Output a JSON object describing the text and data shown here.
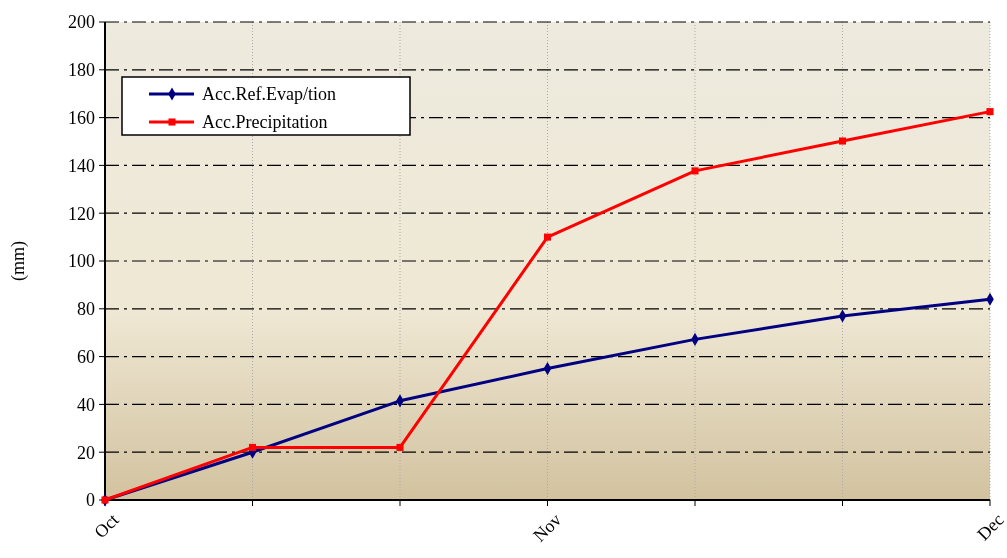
{
  "chart_data": {
    "type": "line",
    "ylabel": "(mm)",
    "categories": [
      "Oct",
      null,
      null,
      "Nov",
      null,
      null,
      "Dec"
    ],
    "series": [
      {
        "name": "Acc.Ref.Evap/tion",
        "color": "#000080",
        "marker": "diamond",
        "values": [
          0,
          20,
          41.5,
          55,
          67.2,
          77,
          84
        ]
      },
      {
        "name": "Acc.Precipitation",
        "color": "#ff0000",
        "marker": "square",
        "values": [
          0,
          22,
          22,
          110,
          137.7,
          150.2,
          162.5
        ]
      }
    ],
    "ylim": [
      0,
      200
    ],
    "yticks": [
      0,
      20,
      40,
      60,
      80,
      100,
      120,
      140,
      160,
      180,
      200
    ],
    "grid": true,
    "legend": "top left"
  }
}
